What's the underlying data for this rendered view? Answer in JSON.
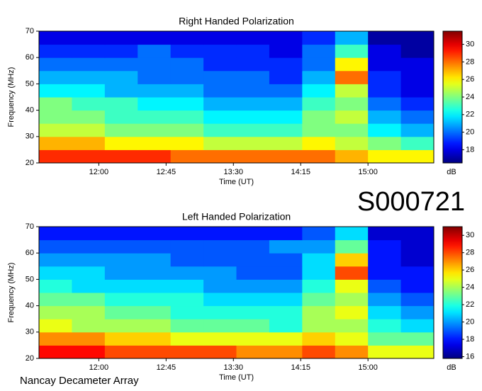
{
  "page": {
    "id": "S000721",
    "footer": "Nancay Decameter Array"
  },
  "chart_data": [
    {
      "type": "heatmap",
      "title": "Right Handed Polarization",
      "x_label": "Time (UT)",
      "y_label": "Frequency (MHz)",
      "colorbar_label": "dB",
      "xlim": [
        680,
        944
      ],
      "ylim": [
        20,
        70
      ],
      "xticks": [
        {
          "value": 720,
          "label": "12:00"
        },
        {
          "value": 765,
          "label": "12:45"
        },
        {
          "value": 810,
          "label": "13:30"
        },
        {
          "value": 855,
          "label": "14:15"
        },
        {
          "value": 900,
          "label": "15:00"
        }
      ],
      "yticks": [
        20,
        30,
        40,
        50,
        60,
        70
      ],
      "clim": [
        16.5,
        31.5
      ],
      "cticks": [
        18,
        20,
        22,
        24,
        26,
        28,
        30
      ],
      "x": [
        691,
        713,
        735,
        757,
        779,
        801,
        823,
        845,
        867,
        889,
        911,
        933
      ],
      "y": [
        22.5,
        27.5,
        32.5,
        37.5,
        42.5,
        47.5,
        52.5,
        57.5,
        62.5,
        67.5
      ],
      "z": [
        [
          29,
          29,
          29,
          29,
          28,
          28,
          28,
          28,
          28,
          27,
          26,
          26
        ],
        [
          27,
          27,
          26,
          26,
          26,
          25,
          25,
          25,
          26,
          25,
          24,
          23
        ],
        [
          25,
          25,
          24,
          24,
          24,
          23,
          23,
          23,
          24,
          24,
          22,
          21
        ],
        [
          24,
          24,
          23,
          23,
          23,
          22,
          22,
          22,
          24,
          25,
          21,
          20
        ],
        [
          24,
          23,
          23,
          22,
          22,
          21,
          21,
          21,
          23,
          24,
          20,
          19
        ],
        [
          22,
          22,
          21,
          21,
          21,
          20,
          20,
          20,
          22,
          25,
          19,
          18
        ],
        [
          21,
          21,
          21,
          20,
          20,
          20,
          20,
          19,
          21,
          28,
          19,
          18
        ],
        [
          20,
          20,
          20,
          20,
          20,
          19,
          19,
          19,
          20,
          26,
          18,
          18
        ],
        [
          19,
          19,
          19,
          20,
          19,
          19,
          19,
          18,
          20,
          23,
          18,
          17
        ],
        [
          18,
          18,
          18,
          18,
          18,
          18,
          18,
          18,
          19,
          21,
          17,
          17
        ]
      ]
    },
    {
      "type": "heatmap",
      "title": "Left Handed Polarization",
      "x_label": "Time (UT)",
      "y_label": "Frequency (MHz)",
      "colorbar_label": "dB",
      "xlim": [
        680,
        944
      ],
      "ylim": [
        20,
        70
      ],
      "xticks": [
        {
          "value": 720,
          "label": "12:00"
        },
        {
          "value": 765,
          "label": "12:45"
        },
        {
          "value": 810,
          "label": "13:30"
        },
        {
          "value": 855,
          "label": "14:15"
        },
        {
          "value": 900,
          "label": "15:00"
        }
      ],
      "yticks": [
        20,
        30,
        40,
        50,
        60,
        70
      ],
      "clim": [
        15.8,
        31
      ],
      "cticks": [
        16,
        18,
        20,
        22,
        24,
        26,
        28,
        30
      ],
      "x": [
        691,
        713,
        735,
        757,
        779,
        801,
        823,
        845,
        867,
        889,
        911,
        933
      ],
      "y": [
        22.5,
        27.5,
        32.5,
        37.5,
        42.5,
        47.5,
        52.5,
        57.5,
        62.5,
        67.5
      ],
      "z": [
        [
          29,
          29,
          28,
          28,
          28,
          28,
          27,
          27,
          28,
          27,
          25,
          25
        ],
        [
          27,
          27,
          26,
          26,
          25,
          25,
          25,
          25,
          26,
          25,
          23,
          23
        ],
        [
          25,
          24,
          24,
          24,
          23,
          23,
          23,
          22,
          24,
          24,
          22,
          21
        ],
        [
          24,
          24,
          23,
          23,
          22,
          22,
          22,
          22,
          24,
          25,
          21,
          20
        ],
        [
          23,
          23,
          22,
          22,
          22,
          21,
          21,
          21,
          23,
          24,
          20,
          19
        ],
        [
          22,
          21,
          21,
          21,
          21,
          20,
          20,
          20,
          22,
          25,
          19,
          18
        ],
        [
          21,
          21,
          20,
          20,
          20,
          20,
          19,
          19,
          21,
          28,
          18,
          18
        ],
        [
          20,
          20,
          20,
          20,
          19,
          19,
          19,
          19,
          21,
          26,
          18,
          17
        ],
        [
          19,
          19,
          19,
          19,
          19,
          19,
          19,
          20,
          20,
          23,
          18,
          17
        ],
        [
          18,
          18,
          18,
          18,
          18,
          18,
          18,
          18,
          19,
          21,
          17,
          17
        ]
      ]
    }
  ]
}
